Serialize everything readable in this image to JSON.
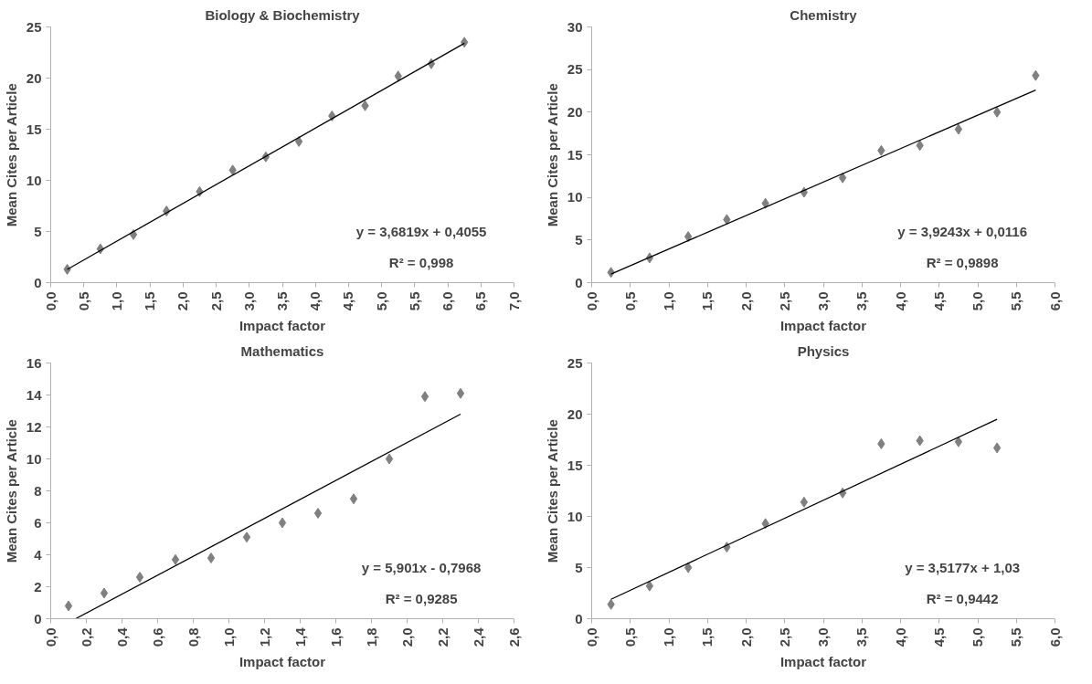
{
  "chart_data": [
    {
      "type": "scatter",
      "title": "Biology & Biochemistry",
      "xlabel": "Impact factor",
      "ylabel": "Mean Cites per Article",
      "xlim": [
        0,
        7
      ],
      "ylim": [
        0,
        25
      ],
      "xticks": [
        {
          "value": 0,
          "label": "0,0"
        },
        {
          "value": 0.5,
          "label": "0,5"
        },
        {
          "value": 1,
          "label": "1,0"
        },
        {
          "value": 1.5,
          "label": "1,5"
        },
        {
          "value": 2,
          "label": "2,0"
        },
        {
          "value": 2.5,
          "label": "2,5"
        },
        {
          "value": 3,
          "label": "3,0"
        },
        {
          "value": 3.5,
          "label": "3,5"
        },
        {
          "value": 4,
          "label": "4,0"
        },
        {
          "value": 4.5,
          "label": "4,5"
        },
        {
          "value": 5,
          "label": "5,0"
        },
        {
          "value": 5.5,
          "label": "5,5"
        },
        {
          "value": 6,
          "label": "6,0"
        },
        {
          "value": 6.5,
          "label": "6,5"
        },
        {
          "value": 7,
          "label": "7,0"
        }
      ],
      "yticks": [
        0,
        5,
        10,
        15,
        20,
        25
      ],
      "grid": false,
      "annotations": [
        "y = 3,6819x + 0,4055",
        "R² = 0,998"
      ],
      "series": [
        {
          "marker": "diamond",
          "color": "#808080",
          "x": [
            0.25,
            0.75,
            1.25,
            1.75,
            2.25,
            2.75,
            3.25,
            3.75,
            4.25,
            4.75,
            5.25,
            5.75,
            6.25
          ],
          "values": [
            1.3,
            3.3,
            4.7,
            7.0,
            8.9,
            11.0,
            12.3,
            13.8,
            16.3,
            17.3,
            20.2,
            21.4,
            23.5
          ]
        },
        {
          "type": "line",
          "marker": "none",
          "color": "#000000",
          "x": [
            0.25,
            6.25
          ],
          "values": [
            1.3,
            23.4
          ]
        }
      ]
    },
    {
      "type": "scatter",
      "title": "Chemistry",
      "xlabel": "Impact factor",
      "ylabel": "Mean Cites per Article",
      "xlim": [
        0,
        6
      ],
      "ylim": [
        0,
        30
      ],
      "xticks": [
        {
          "value": 0,
          "label": "0,0"
        },
        {
          "value": 0.5,
          "label": "0,5"
        },
        {
          "value": 1,
          "label": "1,0"
        },
        {
          "value": 1.5,
          "label": "1,5"
        },
        {
          "value": 2,
          "label": "2,0"
        },
        {
          "value": 2.5,
          "label": "2,5"
        },
        {
          "value": 3,
          "label": "3,0"
        },
        {
          "value": 3.5,
          "label": "3,5"
        },
        {
          "value": 4,
          "label": "4,0"
        },
        {
          "value": 4.5,
          "label": "4,5"
        },
        {
          "value": 5,
          "label": "5,0"
        },
        {
          "value": 5.5,
          "label": "5,5"
        },
        {
          "value": 6,
          "label": "6,0"
        }
      ],
      "yticks": [
        0,
        5,
        10,
        15,
        20,
        25,
        30
      ],
      "grid": false,
      "annotations": [
        "y = 3,9243x + 0,0116",
        "R² = 0,9898"
      ],
      "series": [
        {
          "marker": "diamond",
          "color": "#808080",
          "x": [
            0.25,
            0.75,
            1.25,
            1.75,
            2.25,
            2.75,
            3.25,
            3.75,
            4.25,
            4.75,
            5.25,
            5.75
          ],
          "values": [
            1.2,
            2.9,
            5.4,
            7.4,
            9.3,
            10.6,
            12.3,
            15.5,
            16.1,
            18.0,
            20.0,
            24.3
          ]
        },
        {
          "type": "line",
          "marker": "none",
          "color": "#000000",
          "x": [
            0.25,
            5.75
          ],
          "values": [
            1.0,
            22.6
          ]
        }
      ]
    },
    {
      "type": "scatter",
      "title": "Mathematics",
      "xlabel": "Impact factor",
      "ylabel": "Mean Cites per Article",
      "xlim": [
        0,
        2.6
      ],
      "ylim": [
        0,
        16
      ],
      "xticks": [
        {
          "value": 0,
          "label": "0,0"
        },
        {
          "value": 0.2,
          "label": "0,2"
        },
        {
          "value": 0.4,
          "label": "0,4"
        },
        {
          "value": 0.6,
          "label": "0,6"
        },
        {
          "value": 0.8,
          "label": "0,8"
        },
        {
          "value": 1,
          "label": "1,0"
        },
        {
          "value": 1.2,
          "label": "1,2"
        },
        {
          "value": 1.4,
          "label": "1,4"
        },
        {
          "value": 1.6,
          "label": "1,6"
        },
        {
          "value": 1.8,
          "label": "1,8"
        },
        {
          "value": 2,
          "label": "2,0"
        },
        {
          "value": 2.2,
          "label": "2,2"
        },
        {
          "value": 2.4,
          "label": "2,4"
        },
        {
          "value": 2.6,
          "label": "2,6"
        }
      ],
      "yticks": [
        0,
        2,
        4,
        6,
        8,
        10,
        12,
        14,
        16
      ],
      "grid": false,
      "annotations": [
        "y = 5,901x - 0,7968",
        "R² = 0,9285"
      ],
      "series": [
        {
          "marker": "diamond",
          "color": "#808080",
          "x": [
            0.1,
            0.3,
            0.5,
            0.7,
            0.9,
            1.1,
            1.3,
            1.5,
            1.7,
            1.9,
            2.1,
            2.3
          ],
          "values": [
            0.8,
            1.6,
            2.6,
            3.7,
            3.8,
            5.1,
            6.0,
            6.6,
            7.5,
            10.0,
            13.9,
            14.1
          ]
        },
        {
          "type": "line",
          "marker": "none",
          "color": "#000000",
          "x": [
            0.14,
            2.3
          ],
          "values": [
            0.0,
            12.8
          ]
        }
      ]
    },
    {
      "type": "scatter",
      "title": "Physics",
      "xlabel": "Impact factor",
      "ylabel": "Mean Cites per Article",
      "xlim": [
        0,
        6
      ],
      "ylim": [
        0,
        25
      ],
      "xticks": [
        {
          "value": 0,
          "label": "0,0"
        },
        {
          "value": 0.5,
          "label": "0,5"
        },
        {
          "value": 1,
          "label": "1,0"
        },
        {
          "value": 1.5,
          "label": "1,5"
        },
        {
          "value": 2,
          "label": "2,0"
        },
        {
          "value": 2.5,
          "label": "2,5"
        },
        {
          "value": 3,
          "label": "3,0"
        },
        {
          "value": 3.5,
          "label": "3,5"
        },
        {
          "value": 4,
          "label": "4,0"
        },
        {
          "value": 4.5,
          "label": "4,5"
        },
        {
          "value": 5,
          "label": "5,0"
        },
        {
          "value": 5.5,
          "label": "5,5"
        },
        {
          "value": 6,
          "label": "6,0"
        }
      ],
      "yticks": [
        0,
        5,
        10,
        15,
        20,
        25
      ],
      "grid": false,
      "annotations": [
        "y = 3,5177x + 1,03",
        "R² = 0,9442"
      ],
      "series": [
        {
          "marker": "diamond",
          "color": "#808080",
          "x": [
            0.25,
            0.75,
            1.25,
            1.75,
            2.25,
            2.75,
            3.25,
            3.75,
            4.25,
            4.75,
            5.25
          ],
          "values": [
            1.4,
            3.2,
            5.0,
            7.0,
            9.3,
            11.4,
            12.3,
            17.1,
            17.4,
            17.3,
            16.7
          ]
        },
        {
          "type": "line",
          "marker": "none",
          "color": "#000000",
          "x": [
            0.25,
            5.25
          ],
          "values": [
            1.9,
            19.5
          ]
        }
      ]
    }
  ]
}
